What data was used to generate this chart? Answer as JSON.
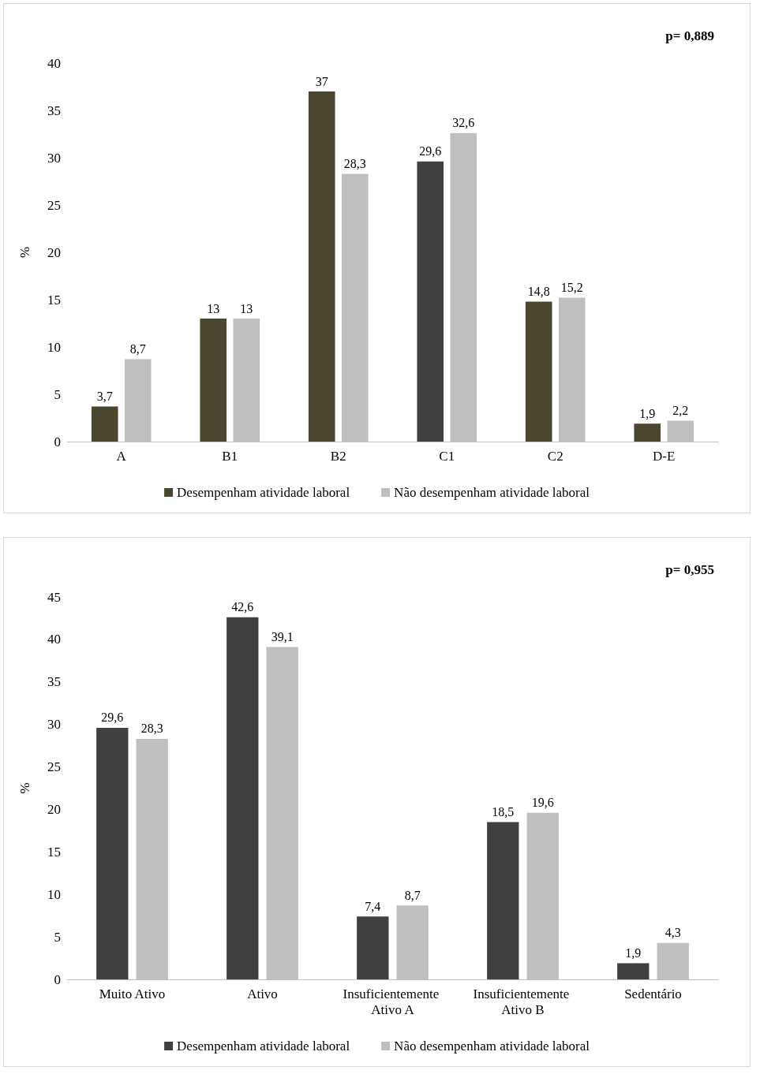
{
  "chart_data": [
    {
      "type": "bar",
      "ylabel": "%",
      "annotations": [
        "p= 0,889"
      ],
      "categories": [
        "A",
        "B1",
        "B2",
        "C1",
        "C2",
        "D-E"
      ],
      "series": [
        {
          "name": "Desempenham atividade laboral",
          "color": "#4b4630",
          "colors": [
            "#4b4630",
            "#4b4630",
            "#4b4630",
            "#404040",
            "#4b4630",
            "#4b4630"
          ],
          "values": [
            3.7,
            13,
            37,
            29.6,
            14.8,
            1.9
          ],
          "value_labels": [
            "3,7",
            "13",
            "37",
            "29,6",
            "14,8",
            "1,9"
          ]
        },
        {
          "name": "Não desempenham atividade laboral",
          "color": "#bfbfbf",
          "values": [
            8.7,
            13,
            28.3,
            32.6,
            15.2,
            2.2
          ],
          "value_labels": [
            "8,7",
            "13",
            "28,3",
            "32,6",
            "15,2",
            "2,2"
          ]
        }
      ],
      "ylim": [
        0,
        40
      ],
      "yticks": [
        0,
        5,
        10,
        15,
        20,
        25,
        30,
        35,
        40
      ],
      "grid": false,
      "legend": "bottom"
    },
    {
      "type": "bar",
      "ylabel": "%",
      "annotations": [
        "p= 0,955"
      ],
      "categories": [
        "Muito Ativo",
        "Ativo",
        "Insuficientemente Ativo A",
        "Insuficientemente Ativo B",
        "Sedentário"
      ],
      "series": [
        {
          "name": "Desempenham atividade laboral",
          "color": "#404040",
          "values": [
            29.6,
            42.6,
            7.4,
            18.5,
            1.9
          ],
          "value_labels": [
            "29,6",
            "42,6",
            "7,4",
            "18,5",
            "1,9"
          ]
        },
        {
          "name": "Não desempenham atividade laboral",
          "color": "#bfbfbf",
          "values": [
            28.3,
            39.1,
            8.7,
            19.6,
            4.3
          ],
          "value_labels": [
            "28,3",
            "39,1",
            "8,7",
            "19,6",
            "4,3"
          ]
        }
      ],
      "ylim": [
        0,
        45
      ],
      "yticks": [
        0,
        5,
        10,
        15,
        20,
        25,
        30,
        35,
        40,
        45
      ],
      "grid": false,
      "legend": "bottom"
    }
  ]
}
